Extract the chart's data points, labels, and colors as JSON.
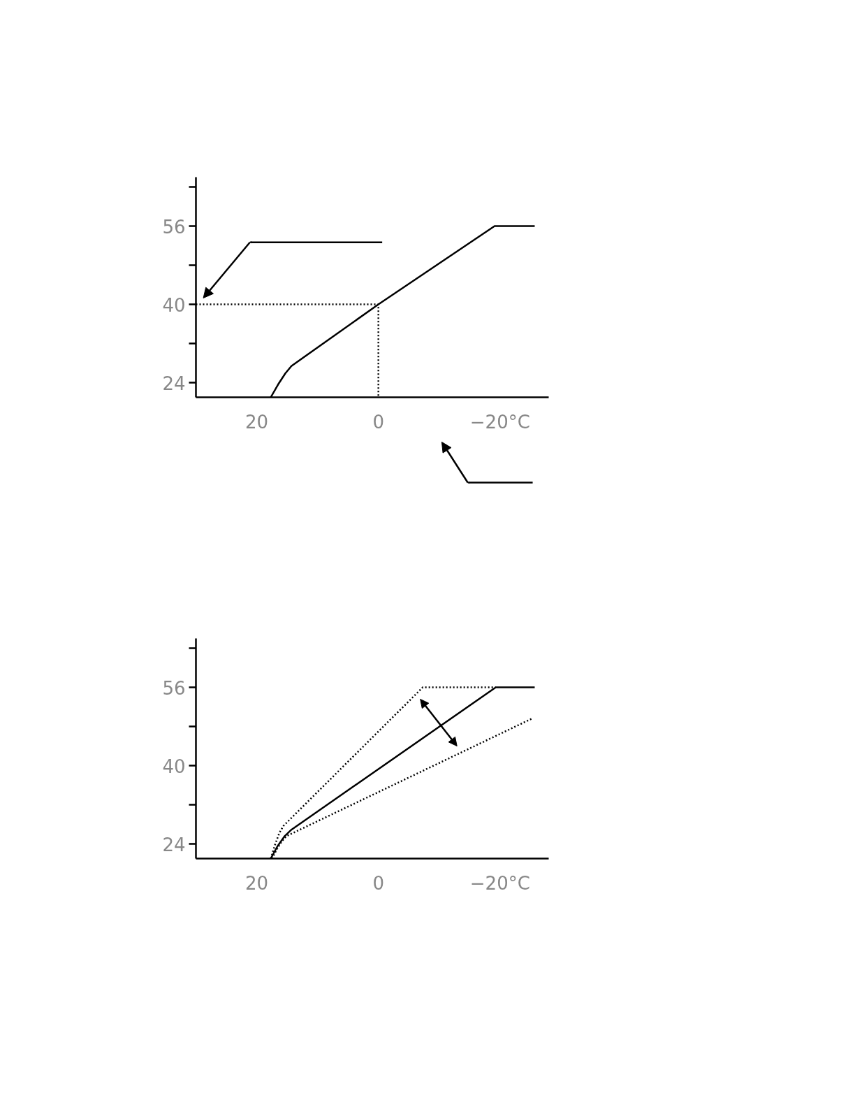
{
  "chart_data": [
    {
      "type": "line",
      "xlim": [
        30,
        -28
      ],
      "ylim": [
        21,
        66
      ],
      "xticks": [
        20,
        0,
        {
          "value": -20,
          "label": "−20°C"
        }
      ],
      "yticks": [
        24,
        {
          "value": 32,
          "label": null
        },
        40,
        {
          "value": 48,
          "label": null
        },
        56,
        {
          "value": 64,
          "label": null
        }
      ],
      "grid": false,
      "series": [
        {
          "color": "#000000",
          "line_style": "solid",
          "x": [
            17.7,
            16.5,
            15.3,
            14.3,
            0,
            -19.1,
            -25.7
          ],
          "values": [
            21,
            23.6,
            25.9,
            27.4,
            40,
            56,
            56
          ]
        },
        {
          "color": "#000000",
          "line_style": "dotted",
          "x": [
            30,
            0,
            0
          ],
          "values": [
            40,
            40,
            21
          ]
        }
      ]
    },
    {
      "type": "line",
      "xlim": [
        30,
        -28
      ],
      "ylim": [
        21,
        66
      ],
      "xticks": [
        20,
        0,
        {
          "value": -20,
          "label": "−20°C"
        }
      ],
      "yticks": [
        24,
        {
          "value": 32,
          "label": null
        },
        40,
        {
          "value": 48,
          "label": null
        },
        56,
        {
          "value": 64,
          "label": null
        }
      ],
      "grid": false,
      "series": [
        {
          "color": "#000000",
          "line_style": "solid",
          "x": [
            17.7,
            16.6,
            15.4,
            14.3,
            -19.3,
            -25.7
          ],
          "values": [
            21,
            23.5,
            25.6,
            26.9,
            56,
            56
          ]
        },
        {
          "color": "#000000",
          "line_style": "dotted",
          "x": [
            17.7,
            17.0,
            16.3,
            15.6,
            -7.3,
            -19.3
          ],
          "values": [
            21,
            23.8,
            26.2,
            27.7,
            56,
            56
          ]
        },
        {
          "color": "#000000",
          "line_style": "dotted",
          "x": [
            17.5,
            16.7,
            15.9,
            15.1,
            -25.4
          ],
          "values": [
            21,
            22.9,
            24.5,
            25.6,
            49.7
          ]
        }
      ]
    }
  ]
}
